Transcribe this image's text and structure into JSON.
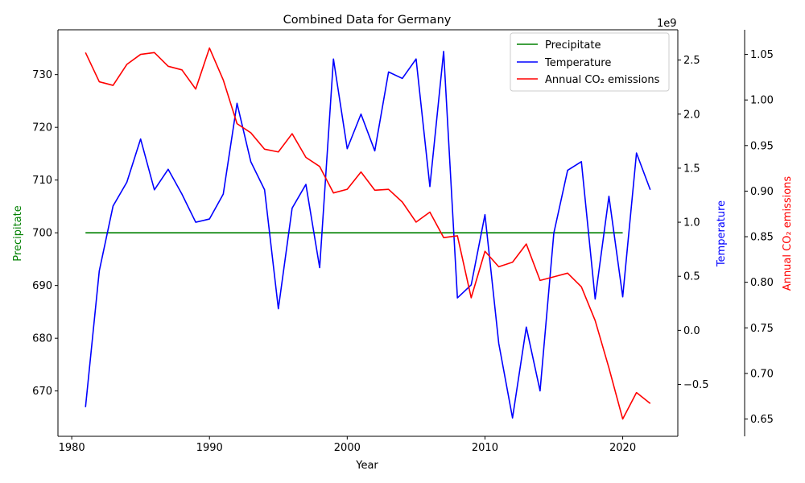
{
  "chart_data": {
    "type": "line",
    "title": "Combined Data for Germany",
    "xlabel": "Year",
    "x_ticks": [
      1980,
      1990,
      2000,
      2010,
      2020
    ],
    "xlim": [
      1979,
      2024
    ],
    "axes": [
      {
        "id": "precip",
        "label": "Precipitate",
        "color": "#008000",
        "ylim": [
          661.4,
          738.5
        ],
        "ticks": [
          670,
          680,
          690,
          700,
          710,
          720,
          730
        ],
        "offset_label": ""
      },
      {
        "id": "temp",
        "label": "Temperature",
        "color": "#0000ff",
        "ylim": [
          -0.98,
          2.78
        ],
        "ticks": [
          -0.5,
          0.0,
          0.5,
          1.0,
          1.5,
          2.0,
          2.5
        ],
        "tick_labels": [
          "−0.5",
          "0.0",
          "0.5",
          "1.0",
          "1.5",
          "2.0",
          "2.5"
        ],
        "offset_label": "1e9"
      },
      {
        "id": "co2",
        "label": "Annual CO₂ emissions",
        "color": "#ff0000",
        "ylim": [
          0.631,
          1.077
        ],
        "ticks": [
          0.65,
          0.7,
          0.75,
          0.8,
          0.85,
          0.9,
          0.95,
          1.0,
          1.05
        ],
        "tick_labels": [
          "0.65",
          "0.70",
          "0.75",
          "0.80",
          "0.85",
          "0.90",
          "0.95",
          "1.00",
          "1.05"
        ],
        "offset_label": ""
      }
    ],
    "series": [
      {
        "name": "Precipitate",
        "axis": "precip",
        "color": "#008000",
        "x": [
          1981,
          2020
        ],
        "values": [
          700,
          700
        ]
      },
      {
        "name": "Temperature",
        "axis": "temp",
        "color": "#0000ff",
        "x": [
          1981,
          1982,
          1983,
          1984,
          1985,
          1986,
          1987,
          1988,
          1989,
          1990,
          1991,
          1992,
          1993,
          1994,
          1995,
          1996,
          1997,
          1998,
          1999,
          2000,
          2001,
          2002,
          2003,
          2004,
          2005,
          2006,
          2007,
          2008,
          2009,
          2010,
          2011,
          2012,
          2013,
          2014,
          2015,
          2016,
          2017,
          2018,
          2019,
          2020,
          2021,
          2022
        ],
        "values": [
          -0.71,
          0.55,
          1.15,
          1.37,
          1.77,
          1.3,
          1.49,
          1.26,
          1.0,
          1.03,
          1.26,
          2.1,
          1.56,
          1.3,
          0.2,
          1.13,
          1.35,
          0.58,
          2.51,
          1.68,
          2.0,
          1.66,
          2.39,
          2.33,
          2.51,
          1.33,
          2.58,
          0.3,
          0.42,
          1.07,
          -0.12,
          -0.81,
          0.03,
          -0.56,
          0.9,
          1.48,
          1.56,
          0.29,
          1.24,
          0.31,
          1.64,
          1.3
        ]
      },
      {
        "name": "Annual CO₂ emissions",
        "axis": "co2",
        "color": "#ff0000",
        "x": [
          1981,
          1982,
          1983,
          1984,
          1985,
          1986,
          1987,
          1988,
          1989,
          1990,
          1991,
          1992,
          1993,
          1994,
          1995,
          1996,
          1997,
          1998,
          1999,
          2000,
          2001,
          2002,
          2003,
          2004,
          2005,
          2006,
          2007,
          2008,
          2009,
          2010,
          2011,
          2012,
          2013,
          2014,
          2015,
          2016,
          2017,
          2018,
          2019,
          2020,
          2021,
          2022
        ],
        "values": [
          1.052,
          1.02,
          1.016,
          1.039,
          1.05,
          1.052,
          1.037,
          1.033,
          1.012,
          1.057,
          1.022,
          0.974,
          0.964,
          0.946,
          0.943,
          0.963,
          0.937,
          0.927,
          0.898,
          0.902,
          0.921,
          0.901,
          0.902,
          0.888,
          0.866,
          0.877,
          0.849,
          0.851,
          0.783,
          0.834,
          0.817,
          0.822,
          0.842,
          0.802,
          0.806,
          0.81,
          0.795,
          0.758,
          0.706,
          0.65,
          0.679,
          0.667
        ]
      }
    ],
    "legend": {
      "placement": "top-right",
      "entries": [
        "Precipitate",
        "Temperature",
        "Annual CO₂ emissions"
      ]
    },
    "grid": false
  }
}
